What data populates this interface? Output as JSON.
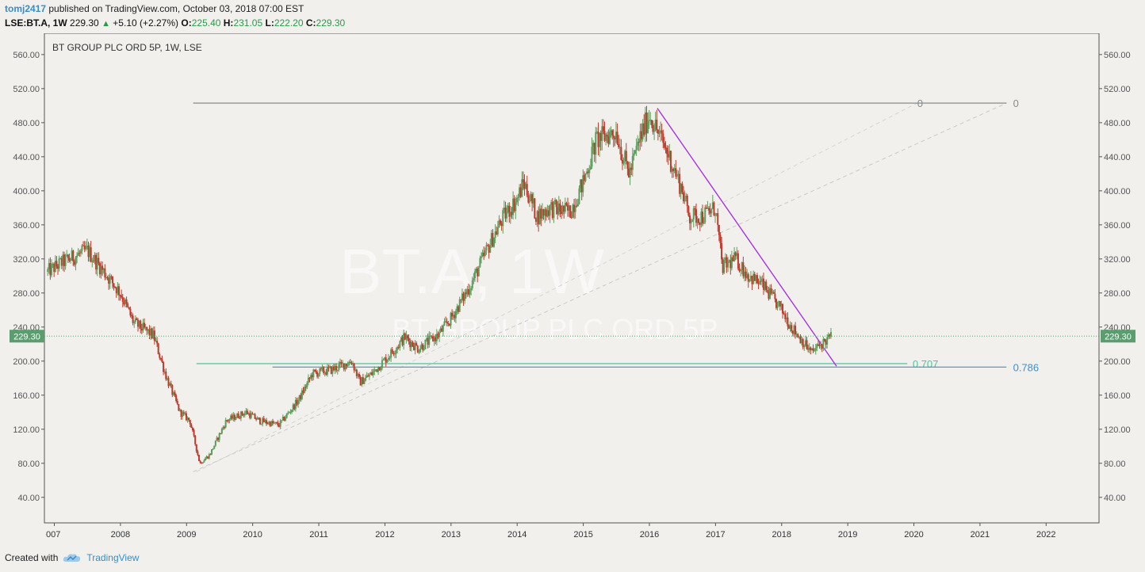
{
  "header": {
    "user": "tomj2417",
    "published_text": "published on TradingView.com, October 03, 2018 07:00 EST",
    "symbol_line": "LSE:BT.A, 1W",
    "price": "229.30",
    "change_symbol": "▲",
    "change": "+5.10 (+2.27%)",
    "open_label": "O:",
    "open": "225.40",
    "high_label": "H:",
    "high": "231.05",
    "low_label": "L:",
    "low": "222.20",
    "close_label": "C:",
    "close": "229.30"
  },
  "footer": {
    "created_with": "Created with",
    "brand": "TradingView"
  },
  "colors": {
    "up": "#5b9e5b",
    "down": "#c0392b",
    "trend": "#a326e8",
    "fib_top": "#8a8a8a",
    "fib_707": "#4fc39a",
    "fib_786": "#3d8fd0",
    "price_tag": "#5a9e6f"
  },
  "chart_data": {
    "type": "candlestick",
    "title": "BT GROUP PLC ORD 5P, 1W, LSE",
    "watermark_big": "BT.A, 1W",
    "watermark_small": "BT GROUP PLC ORD 5P",
    "ylim": [
      10,
      585
    ],
    "y_ticks": [
      "560.00",
      "520.00",
      "480.00",
      "440.00",
      "400.00",
      "360.00",
      "320.00",
      "280.00",
      "240.00",
      "200.00",
      "160.00",
      "120.00",
      "80.00",
      "40.00"
    ],
    "xlim": [
      2006.85,
      2022.8
    ],
    "x_ticks": [
      "007",
      "2008",
      "2009",
      "2010",
      "2011",
      "2012",
      "2013",
      "2014",
      "2015",
      "2016",
      "2017",
      "2018",
      "2019",
      "2020",
      "2021",
      "2022"
    ],
    "last_price": "229.30",
    "path": [
      [
        2006.9,
        305
      ],
      [
        2007.1,
        315
      ],
      [
        2007.5,
        330
      ],
      [
        2007.8,
        300
      ],
      [
        2008.0,
        280
      ],
      [
        2008.2,
        245
      ],
      [
        2008.5,
        230
      ],
      [
        2008.7,
        180
      ],
      [
        2008.9,
        140
      ],
      [
        2009.05,
        130
      ],
      [
        2009.2,
        80
      ],
      [
        2009.35,
        90
      ],
      [
        2009.6,
        130
      ],
      [
        2009.9,
        140
      ],
      [
        2010.1,
        130
      ],
      [
        2010.4,
        125
      ],
      [
        2010.7,
        155
      ],
      [
        2010.9,
        185
      ],
      [
        2011.2,
        190
      ],
      [
        2011.5,
        200
      ],
      [
        2011.62,
        175
      ],
      [
        2011.8,
        185
      ],
      [
        2012.1,
        210
      ],
      [
        2012.3,
        228
      ],
      [
        2012.5,
        215
      ],
      [
        2012.8,
        230
      ],
      [
        2013.0,
        250
      ],
      [
        2013.3,
        290
      ],
      [
        2013.6,
        340
      ],
      [
        2013.8,
        370
      ],
      [
        2014.0,
        390
      ],
      [
        2014.1,
        410
      ],
      [
        2014.3,
        370
      ],
      [
        2014.5,
        380
      ],
      [
        2014.8,
        375
      ],
      [
        2015.0,
        410
      ],
      [
        2015.2,
        460
      ],
      [
        2015.5,
        470
      ],
      [
        2015.6,
        440
      ],
      [
        2015.7,
        420
      ],
      [
        2015.85,
        460
      ],
      [
        2016.0,
        490
      ],
      [
        2016.12,
        470
      ],
      [
        2016.3,
        440
      ],
      [
        2016.5,
        400
      ],
      [
        2016.6,
        370
      ],
      [
        2016.8,
        370
      ],
      [
        2017.0,
        380
      ],
      [
        2017.1,
        310
      ],
      [
        2017.3,
        320
      ],
      [
        2017.5,
        300
      ],
      [
        2017.7,
        290
      ],
      [
        2017.9,
        270
      ],
      [
        2018.0,
        260
      ],
      [
        2018.15,
        240
      ],
      [
        2018.3,
        225
      ],
      [
        2018.45,
        210
      ],
      [
        2018.6,
        220
      ],
      [
        2018.75,
        229
      ]
    ],
    "annotations": [
      {
        "type": "fib",
        "label": "0",
        "y": 503,
        "x1": 2009.1,
        "x2": 2021.4,
        "label_x": 2021.5
      },
      {
        "type": "fib",
        "label": "0",
        "y": 503,
        "x1": null,
        "x2": null,
        "label_x": 2020.05
      },
      {
        "type": "fib",
        "label": "0.707",
        "y": 197,
        "x1": 2009.15,
        "x2": 2019.9,
        "label_x": 2019.98
      },
      {
        "type": "fib",
        "label": "0.786",
        "y": 193,
        "x1": 2010.3,
        "x2": 2021.4,
        "label_x": 2021.5
      },
      {
        "type": "trendline",
        "x1": 2016.12,
        "y1": 497,
        "x2": 2018.83,
        "y2": 194
      }
    ]
  }
}
